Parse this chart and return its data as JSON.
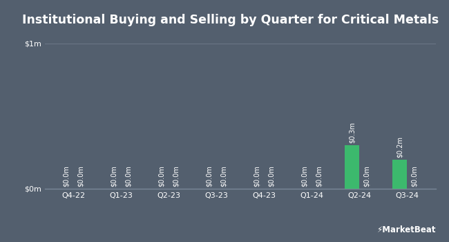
{
  "title": "Institutional Buying and Selling by Quarter for Critical Metals",
  "quarters": [
    "Q4-22",
    "Q1-23",
    "Q2-23",
    "Q3-23",
    "Q4-23",
    "Q1-24",
    "Q2-24",
    "Q3-24"
  ],
  "inflows": [
    0.0,
    0.0,
    0.0,
    0.0,
    0.0,
    0.0,
    0.3,
    0.2
  ],
  "outflows": [
    0.0,
    0.0,
    0.0,
    0.0,
    0.0,
    0.0,
    0.0,
    0.0
  ],
  "inflow_color": "#3cb96d",
  "outflow_color": "#e05050",
  "background_color": "#535f6e",
  "plot_bg_color": "#4a5568",
  "text_color": "#ffffff",
  "grid_color": "#6a7585",
  "axis_color": "#7a8898",
  "bar_width": 0.3,
  "ylim": [
    0,
    1.0
  ],
  "yticks": [
    0,
    1.0
  ],
  "ytick_labels": [
    "$0m",
    "$1m"
  ],
  "title_fontsize": 12.5,
  "label_fontsize": 7,
  "tick_fontsize": 8
}
